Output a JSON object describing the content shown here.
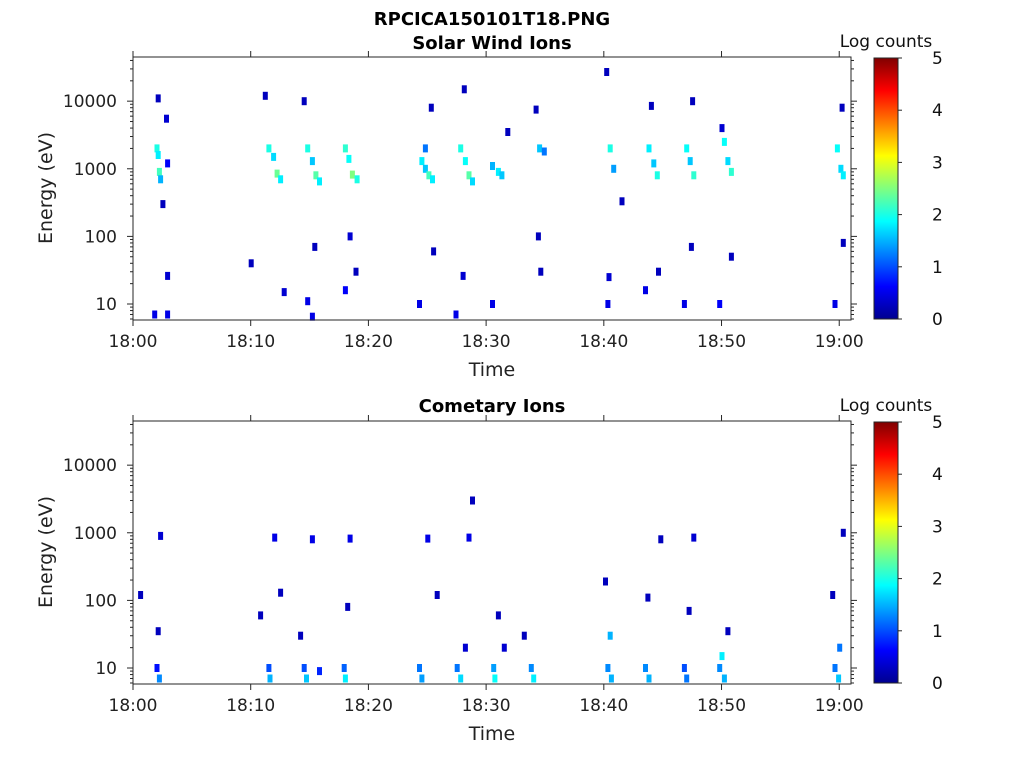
{
  "figure_title": "RPCICA150101T18.PNG",
  "chart_data": [
    {
      "type": "heatmap",
      "id": "solar-wind",
      "title": "Solar Wind Ions",
      "xlabel": "Time",
      "ylabel": "Energy (eV)",
      "colorbar_label": "Log counts",
      "colorbar_range": [
        0,
        5
      ],
      "colorbar_ticks": [
        "0",
        "1",
        "2",
        "3",
        "4",
        "5"
      ],
      "x_ticks": [
        "18:00",
        "18:10",
        "18:20",
        "18:30",
        "18:40",
        "18:50",
        "19:00"
      ],
      "y_ticks": [
        "10",
        "100",
        "1000",
        "10000"
      ],
      "y_scale": "log",
      "xlim": [
        "18:00",
        "19:01"
      ],
      "ylim": [
        5.8,
        45000
      ],
      "colormap": "jet",
      "cells": [
        {
          "t": 2.0,
          "e": 2000,
          "v": 2.0
        },
        {
          "t": 2.1,
          "e": 1600,
          "v": 1.8
        },
        {
          "t": 2.2,
          "e": 900,
          "v": 2.2
        },
        {
          "t": 2.3,
          "e": 700,
          "v": 1.5
        },
        {
          "t": 2.1,
          "e": 11000,
          "v": 0.3
        },
        {
          "t": 2.8,
          "e": 5500,
          "v": 0.4
        },
        {
          "t": 2.9,
          "e": 1200,
          "v": 0.6
        },
        {
          "t": 2.5,
          "e": 300,
          "v": 0.3
        },
        {
          "t": 1.8,
          "e": 7,
          "v": 0.5
        },
        {
          "t": 2.9,
          "e": 7,
          "v": 0.5
        },
        {
          "t": 2.9,
          "e": 26,
          "v": 0.4
        },
        {
          "t": 11.5,
          "e": 2000,
          "v": 2.0
        },
        {
          "t": 11.9,
          "e": 1500,
          "v": 1.7
        },
        {
          "t": 12.2,
          "e": 850,
          "v": 2.4
        },
        {
          "t": 12.5,
          "e": 700,
          "v": 1.8
        },
        {
          "t": 11.2,
          "e": 12000,
          "v": 0.3
        },
        {
          "t": 10.0,
          "e": 40,
          "v": 0.3
        },
        {
          "t": 12.8,
          "e": 15,
          "v": 0.4
        },
        {
          "t": 14.8,
          "e": 2000,
          "v": 2.0
        },
        {
          "t": 15.2,
          "e": 1300,
          "v": 1.6
        },
        {
          "t": 15.5,
          "e": 800,
          "v": 2.3
        },
        {
          "t": 15.8,
          "e": 650,
          "v": 1.8
        },
        {
          "t": 14.5,
          "e": 10000,
          "v": 0.3
        },
        {
          "t": 15.4,
          "e": 70,
          "v": 0.3
        },
        {
          "t": 14.8,
          "e": 11,
          "v": 0.5
        },
        {
          "t": 15.2,
          "e": 6.5,
          "v": 0.5
        },
        {
          "t": 18.0,
          "e": 2000,
          "v": 2.1
        },
        {
          "t": 18.3,
          "e": 1400,
          "v": 1.9
        },
        {
          "t": 18.6,
          "e": 820,
          "v": 2.5
        },
        {
          "t": 19.0,
          "e": 700,
          "v": 2.0
        },
        {
          "t": 18.4,
          "e": 100,
          "v": 0.4
        },
        {
          "t": 18.0,
          "e": 16,
          "v": 0.6
        },
        {
          "t": 18.9,
          "e": 30,
          "v": 0.3
        },
        {
          "t": 24.5,
          "e": 1300,
          "v": 1.8
        },
        {
          "t": 24.8,
          "e": 1000,
          "v": 1.6
        },
        {
          "t": 25.1,
          "e": 800,
          "v": 2.2
        },
        {
          "t": 25.4,
          "e": 700,
          "v": 1.8
        },
        {
          "t": 24.8,
          "e": 2000,
          "v": 1.2
        },
        {
          "t": 25.3,
          "e": 8000,
          "v": 0.3
        },
        {
          "t": 24.3,
          "e": 10,
          "v": 0.5
        },
        {
          "t": 25.5,
          "e": 60,
          "v": 0.3
        },
        {
          "t": 27.8,
          "e": 2000,
          "v": 2.0
        },
        {
          "t": 28.2,
          "e": 1300,
          "v": 1.9
        },
        {
          "t": 28.5,
          "e": 800,
          "v": 2.3
        },
        {
          "t": 28.8,
          "e": 650,
          "v": 1.7
        },
        {
          "t": 28.1,
          "e": 15000,
          "v": 0.3
        },
        {
          "t": 28.0,
          "e": 26,
          "v": 0.4
        },
        {
          "t": 27.4,
          "e": 7,
          "v": 0.5
        },
        {
          "t": 30.5,
          "e": 1100,
          "v": 1.5
        },
        {
          "t": 31.0,
          "e": 900,
          "v": 1.8
        },
        {
          "t": 31.3,
          "e": 800,
          "v": 1.6
        },
        {
          "t": 30.5,
          "e": 10,
          "v": 0.5
        },
        {
          "t": 31.8,
          "e": 3500,
          "v": 0.3
        },
        {
          "t": 34.5,
          "e": 2000,
          "v": 1.6
        },
        {
          "t": 34.9,
          "e": 1800,
          "v": 1.2
        },
        {
          "t": 34.2,
          "e": 7500,
          "v": 0.3
        },
        {
          "t": 34.4,
          "e": 100,
          "v": 0.3
        },
        {
          "t": 34.6,
          "e": 30,
          "v": 0.3
        },
        {
          "t": 40.5,
          "e": 2000,
          "v": 2.0
        },
        {
          "t": 40.8,
          "e": 1000,
          "v": 1.4
        },
        {
          "t": 40.2,
          "e": 27000,
          "v": 0.3
        },
        {
          "t": 40.3,
          "e": 10,
          "v": 0.5
        },
        {
          "t": 40.4,
          "e": 25,
          "v": 0.4
        },
        {
          "t": 41.5,
          "e": 330,
          "v": 0.3
        },
        {
          "t": 43.8,
          "e": 2000,
          "v": 1.8
        },
        {
          "t": 44.2,
          "e": 1200,
          "v": 1.6
        },
        {
          "t": 44.5,
          "e": 800,
          "v": 2.0
        },
        {
          "t": 44.0,
          "e": 8500,
          "v": 0.3
        },
        {
          "t": 43.5,
          "e": 16,
          "v": 0.5
        },
        {
          "t": 44.6,
          "e": 30,
          "v": 0.3
        },
        {
          "t": 47.0,
          "e": 2000,
          "v": 1.9
        },
        {
          "t": 47.3,
          "e": 1300,
          "v": 1.6
        },
        {
          "t": 47.6,
          "e": 800,
          "v": 2.1
        },
        {
          "t": 47.5,
          "e": 10000,
          "v": 0.3
        },
        {
          "t": 46.8,
          "e": 10,
          "v": 0.5
        },
        {
          "t": 47.4,
          "e": 70,
          "v": 0.3
        },
        {
          "t": 50.2,
          "e": 2500,
          "v": 1.9
        },
        {
          "t": 50.5,
          "e": 1300,
          "v": 1.7
        },
        {
          "t": 50.8,
          "e": 900,
          "v": 2.1
        },
        {
          "t": 50.0,
          "e": 4000,
          "v": 0.4
        },
        {
          "t": 49.8,
          "e": 10,
          "v": 0.6
        },
        {
          "t": 50.8,
          "e": 50,
          "v": 0.3
        },
        {
          "t": 59.8,
          "e": 2000,
          "v": 1.9
        },
        {
          "t": 60.1,
          "e": 1000,
          "v": 1.7
        },
        {
          "t": 60.3,
          "e": 800,
          "v": 1.8
        },
        {
          "t": 60.2,
          "e": 8000,
          "v": 0.3
        },
        {
          "t": 59.6,
          "e": 10,
          "v": 0.5
        },
        {
          "t": 60.3,
          "e": 80,
          "v": 0.3
        }
      ]
    },
    {
      "type": "heatmap",
      "id": "cometary",
      "title": "Cometary Ions",
      "xlabel": "Time",
      "ylabel": "Energy (eV)",
      "colorbar_label": "Log counts",
      "colorbar_range": [
        0,
        5
      ],
      "colorbar_ticks": [
        "0",
        "1",
        "2",
        "3",
        "4",
        "5"
      ],
      "x_ticks": [
        "18:00",
        "18:10",
        "18:20",
        "18:30",
        "18:40",
        "18:50",
        "19:00"
      ],
      "y_ticks": [
        "10",
        "100",
        "1000",
        "10000"
      ],
      "y_scale": "log",
      "xlim": [
        "18:00",
        "19:01"
      ],
      "ylim": [
        5.8,
        45000
      ],
      "colormap": "jet",
      "cells": [
        {
          "t": 2.3,
          "e": 900,
          "v": 0.4
        },
        {
          "t": 2.0,
          "e": 10,
          "v": 0.7
        },
        {
          "t": 2.2,
          "e": 7,
          "v": 1.3
        },
        {
          "t": 0.6,
          "e": 120,
          "v": 0.3
        },
        {
          "t": 2.1,
          "e": 35,
          "v": 0.3
        },
        {
          "t": 12.0,
          "e": 850,
          "v": 0.5
        },
        {
          "t": 11.5,
          "e": 10,
          "v": 1.0
        },
        {
          "t": 11.6,
          "e": 7,
          "v": 1.5
        },
        {
          "t": 12.5,
          "e": 130,
          "v": 0.3
        },
        {
          "t": 10.8,
          "e": 60,
          "v": 0.3
        },
        {
          "t": 15.2,
          "e": 800,
          "v": 0.5
        },
        {
          "t": 14.5,
          "e": 10,
          "v": 1.0
        },
        {
          "t": 14.7,
          "e": 7,
          "v": 1.6
        },
        {
          "t": 15.8,
          "e": 9,
          "v": 0.8
        },
        {
          "t": 14.2,
          "e": 30,
          "v": 0.3
        },
        {
          "t": 18.4,
          "e": 820,
          "v": 0.5
        },
        {
          "t": 17.9,
          "e": 10,
          "v": 1.1
        },
        {
          "t": 18.0,
          "e": 7,
          "v": 1.8
        },
        {
          "t": 18.2,
          "e": 80,
          "v": 0.3
        },
        {
          "t": 25.0,
          "e": 820,
          "v": 0.5
        },
        {
          "t": 24.3,
          "e": 10,
          "v": 1.2
        },
        {
          "t": 24.5,
          "e": 7,
          "v": 1.4
        },
        {
          "t": 25.8,
          "e": 120,
          "v": 0.3
        },
        {
          "t": 28.5,
          "e": 850,
          "v": 0.5
        },
        {
          "t": 28.8,
          "e": 3000,
          "v": 0.3
        },
        {
          "t": 27.5,
          "e": 10,
          "v": 1.2
        },
        {
          "t": 27.8,
          "e": 7,
          "v": 1.7
        },
        {
          "t": 28.2,
          "e": 20,
          "v": 0.4
        },
        {
          "t": 30.6,
          "e": 10,
          "v": 1.4
        },
        {
          "t": 30.7,
          "e": 7,
          "v": 1.9
        },
        {
          "t": 31.5,
          "e": 20,
          "v": 0.4
        },
        {
          "t": 31.0,
          "e": 60,
          "v": 0.3
        },
        {
          "t": 33.8,
          "e": 10,
          "v": 1.3
        },
        {
          "t": 34.0,
          "e": 7,
          "v": 1.8
        },
        {
          "t": 33.2,
          "e": 30,
          "v": 0.3
        },
        {
          "t": 40.3,
          "e": 10,
          "v": 1.3
        },
        {
          "t": 40.6,
          "e": 7,
          "v": 1.5
        },
        {
          "t": 40.1,
          "e": 190,
          "v": 0.3
        },
        {
          "t": 40.5,
          "e": 30,
          "v": 1.5
        },
        {
          "t": 43.5,
          "e": 10,
          "v": 1.3
        },
        {
          "t": 43.8,
          "e": 7,
          "v": 1.5
        },
        {
          "t": 44.8,
          "e": 800,
          "v": 0.3
        },
        {
          "t": 43.7,
          "e": 110,
          "v": 0.3
        },
        {
          "t": 46.8,
          "e": 10,
          "v": 1.0
        },
        {
          "t": 47.0,
          "e": 7,
          "v": 1.2
        },
        {
          "t": 47.6,
          "e": 850,
          "v": 0.4
        },
        {
          "t": 47.2,
          "e": 70,
          "v": 0.3
        },
        {
          "t": 49.8,
          "e": 10,
          "v": 1.3
        },
        {
          "t": 50.0,
          "e": 15,
          "v": 1.8
        },
        {
          "t": 50.2,
          "e": 7,
          "v": 1.5
        },
        {
          "t": 50.5,
          "e": 35,
          "v": 0.3
        },
        {
          "t": 59.6,
          "e": 10,
          "v": 1.2
        },
        {
          "t": 59.9,
          "e": 7,
          "v": 1.6
        },
        {
          "t": 60.0,
          "e": 20,
          "v": 1.2
        },
        {
          "t": 60.3,
          "e": 1000,
          "v": 0.3
        },
        {
          "t": 59.4,
          "e": 120,
          "v": 0.3
        }
      ]
    }
  ]
}
